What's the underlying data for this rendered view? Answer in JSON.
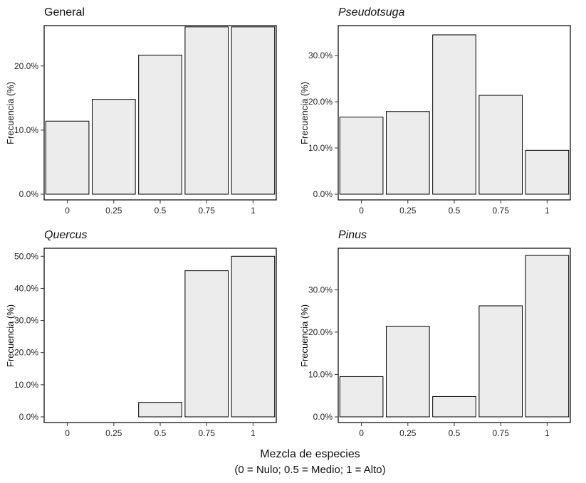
{
  "figure": {
    "xlabel": "Mezcla de especies",
    "xlabel_note": "(0 = Nulo; 0.5 = Medio; 1 = Alto)",
    "ylabel": "Frecuencia (%)"
  },
  "colors": {
    "bar_fill": "#ececec",
    "bar_stroke": "#000000",
    "panel_border": "#000000",
    "tick_color": "#333333",
    "text_color": "#262626",
    "background": "#ffffff"
  },
  "chart_data": [
    {
      "type": "bar",
      "title": "General",
      "title_italic": false,
      "ylabel": "Frecuencia (%)",
      "categories": [
        "0",
        "0.25",
        "0.5",
        "0.75",
        "1"
      ],
      "values": [
        11.4,
        14.8,
        21.7,
        26.1,
        26.1
      ],
      "yticks": [
        0,
        10,
        20
      ],
      "ytick_labels": [
        "0.0%",
        "10.0%",
        "20.0%"
      ],
      "ylim": [
        0,
        26.3
      ],
      "grid": false,
      "legend": "none"
    },
    {
      "type": "bar",
      "title": "Pseudotsuga",
      "title_italic": true,
      "ylabel": "Frecuencia (%)",
      "categories": [
        "0",
        "0.25",
        "0.5",
        "0.75",
        "1"
      ],
      "values": [
        16.7,
        17.9,
        34.5,
        21.4,
        9.5
      ],
      "yticks": [
        0,
        10,
        20,
        30
      ],
      "ytick_labels": [
        "0.0%",
        "10.0%",
        "20.0%",
        "30.0%"
      ],
      "ylim": [
        0,
        36.5
      ],
      "grid": false,
      "legend": "none"
    },
    {
      "type": "bar",
      "title": "Quercus",
      "title_italic": true,
      "ylabel": "Frecuencia (%)",
      "categories": [
        "0",
        "0.25",
        "0.5",
        "0.75",
        "1"
      ],
      "values": [
        0,
        0,
        4.5,
        45.5,
        50.0
      ],
      "yticks": [
        0,
        10,
        20,
        30,
        40,
        50
      ],
      "ytick_labels": [
        "0.0%",
        "10.0%",
        "20.0%",
        "30.0%",
        "40.0%",
        "50.0%"
      ],
      "ylim": [
        0,
        52.5
      ],
      "grid": false,
      "legend": "none"
    },
    {
      "type": "bar",
      "title": "Pinus",
      "title_italic": true,
      "ylabel": "Frecuencia (%)",
      "categories": [
        "0",
        "0.25",
        "0.5",
        "0.75",
        "1"
      ],
      "values": [
        9.5,
        21.4,
        4.8,
        26.2,
        38.1
      ],
      "yticks": [
        0,
        10,
        20,
        30
      ],
      "ytick_labels": [
        "0.0%",
        "10.0%",
        "20.0%",
        "30.0%"
      ],
      "ylim": [
        0,
        39.8
      ],
      "grid": false,
      "legend": "none"
    }
  ]
}
